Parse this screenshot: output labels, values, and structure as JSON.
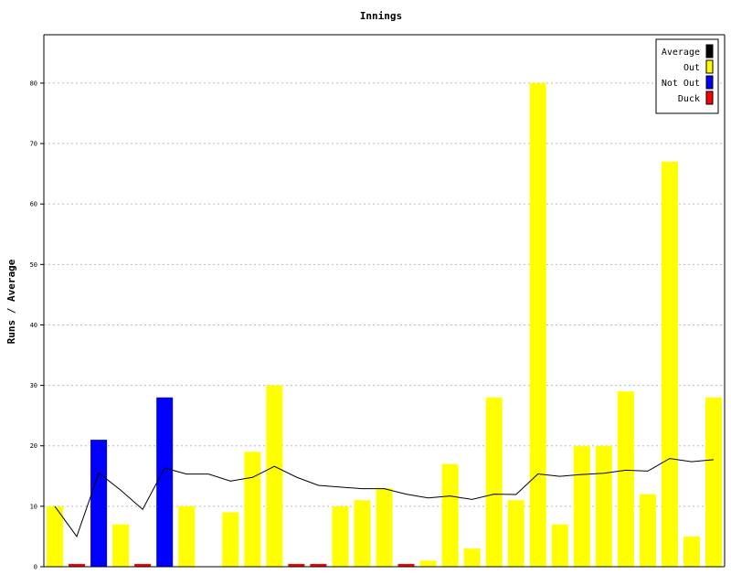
{
  "chart_data": {
    "type": "bar",
    "title": "Innings",
    "ylabel": "Runs / Average",
    "ylim": [
      0,
      88
    ],
    "y_ticks": [
      0,
      10,
      20,
      30,
      40,
      50,
      60,
      70,
      80
    ],
    "grid": true,
    "legend_position": "top-right",
    "legend": [
      {
        "label": "Average",
        "color": "#000000"
      },
      {
        "label": "Out",
        "color": "#ffff00"
      },
      {
        "label": "Not Out",
        "color": "#0000ff"
      },
      {
        "label": "Duck",
        "color": "#ff0000"
      }
    ],
    "innings": [
      {
        "runs": 10,
        "status": "out"
      },
      {
        "runs": 0,
        "status": "duck"
      },
      {
        "runs": 21,
        "status": "not_out"
      },
      {
        "runs": 7,
        "status": "out"
      },
      {
        "runs": 0,
        "status": "duck"
      },
      {
        "runs": 28,
        "status": "not_out"
      },
      {
        "runs": 10,
        "status": "out"
      },
      {
        "runs": 0,
        "status": "out"
      },
      {
        "runs": 9,
        "status": "out"
      },
      {
        "runs": 19,
        "status": "out"
      },
      {
        "runs": 30,
        "status": "out"
      },
      {
        "runs": 0,
        "status": "duck"
      },
      {
        "runs": 0,
        "status": "duck"
      },
      {
        "runs": 10,
        "status": "out"
      },
      {
        "runs": 11,
        "status": "out"
      },
      {
        "runs": 13,
        "status": "out"
      },
      {
        "runs": 0,
        "status": "duck"
      },
      {
        "runs": 1,
        "status": "out"
      },
      {
        "runs": 17,
        "status": "out"
      },
      {
        "runs": 3,
        "status": "out"
      },
      {
        "runs": 28,
        "status": "out"
      },
      {
        "runs": 11,
        "status": "out"
      },
      {
        "runs": 80,
        "status": "out"
      },
      {
        "runs": 7,
        "status": "out"
      },
      {
        "runs": 20,
        "status": "out"
      },
      {
        "runs": 20,
        "status": "out"
      },
      {
        "runs": 29,
        "status": "out"
      },
      {
        "runs": 12,
        "status": "out"
      },
      {
        "runs": 67,
        "status": "out"
      },
      {
        "runs": 5,
        "status": "out"
      },
      {
        "runs": 28,
        "status": "out"
      }
    ],
    "average": [
      10,
      5,
      15.5,
      12.67,
      9.5,
      16.33,
      15.33,
      15.33,
      14.17,
      14.78,
      16.6,
      14.82,
      13.45,
      13.17,
      12.92,
      12.92,
      12.0,
      11.38,
      11.71,
      11.13,
      12.0,
      11.94,
      15.35,
      14.96,
      15.26,
      15.47,
      15.96,
      15.81,
      17.9,
      17.38,
      17.7
    ],
    "colors": {
      "out": "#ffff00",
      "not_out": "#0000ff",
      "duck": "#ff0000",
      "average": "#000000",
      "grid": "#bbbbbb"
    }
  }
}
